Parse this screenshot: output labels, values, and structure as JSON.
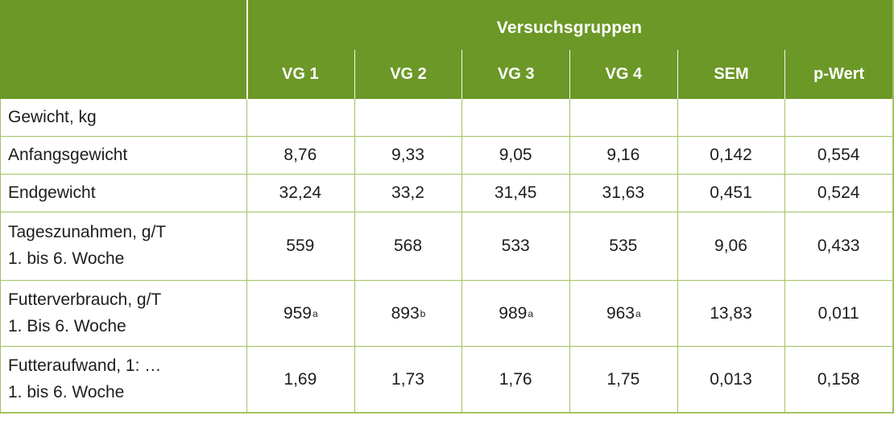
{
  "chart_data": {
    "type": "table",
    "group_header": "Versuchsgruppen",
    "columns": [
      "VG 1",
      "VG 2",
      "VG 3",
      "VG 4",
      "SEM",
      "p-Wert"
    ],
    "rows": [
      {
        "label": "Gewicht, kg",
        "label2": "",
        "cells": [
          {
            "v": "",
            "sup": ""
          },
          {
            "v": "",
            "sup": ""
          },
          {
            "v": "",
            "sup": ""
          },
          {
            "v": "",
            "sup": ""
          },
          {
            "v": "",
            "sup": ""
          },
          {
            "v": "",
            "sup": ""
          }
        ]
      },
      {
        "label": "Anfangsgewicht",
        "label2": "",
        "cells": [
          {
            "v": "8,76",
            "sup": ""
          },
          {
            "v": "9,33",
            "sup": ""
          },
          {
            "v": "9,05",
            "sup": ""
          },
          {
            "v": "9,16",
            "sup": ""
          },
          {
            "v": "0,142",
            "sup": ""
          },
          {
            "v": "0,554",
            "sup": ""
          }
        ]
      },
      {
        "label": "Endgewicht",
        "label2": "",
        "cells": [
          {
            "v": "32,24",
            "sup": ""
          },
          {
            "v": "33,2",
            "sup": ""
          },
          {
            "v": "31,45",
            "sup": ""
          },
          {
            "v": "31,63",
            "sup": ""
          },
          {
            "v": "0,451",
            "sup": ""
          },
          {
            "v": "0,524",
            "sup": ""
          }
        ]
      },
      {
        "label": "Tageszunahmen, g/T",
        "label2": "1. bis 6. Woche",
        "cells": [
          {
            "v": "559",
            "sup": ""
          },
          {
            "v": "568",
            "sup": ""
          },
          {
            "v": "533",
            "sup": ""
          },
          {
            "v": "535",
            "sup": ""
          },
          {
            "v": "9,06",
            "sup": ""
          },
          {
            "v": "0,433",
            "sup": ""
          }
        ]
      },
      {
        "label": "Futterverbrauch, g/T",
        "label2": "1. Bis 6. Woche",
        "cells": [
          {
            "v": "959",
            "sup": "a"
          },
          {
            "v": "893",
            "sup": "b"
          },
          {
            "v": "989",
            "sup": "a"
          },
          {
            "v": "963",
            "sup": "a"
          },
          {
            "v": "13,83",
            "sup": ""
          },
          {
            "v": "0,011",
            "sup": ""
          }
        ]
      },
      {
        "label": "Futteraufwand, 1: …",
        "label2": "1. bis 6. Woche",
        "cells": [
          {
            "v": "1,69",
            "sup": ""
          },
          {
            "v": "1,73",
            "sup": ""
          },
          {
            "v": "1,76",
            "sup": ""
          },
          {
            "v": "1,75",
            "sup": ""
          },
          {
            "v": "0,013",
            "sup": ""
          },
          {
            "v": "0,158",
            "sup": ""
          }
        ]
      }
    ],
    "colors": {
      "header_green": "#6c9827",
      "grid_green": "#a2c162",
      "header_text": "#ffffff",
      "body_text": "#1d1d1b"
    }
  }
}
